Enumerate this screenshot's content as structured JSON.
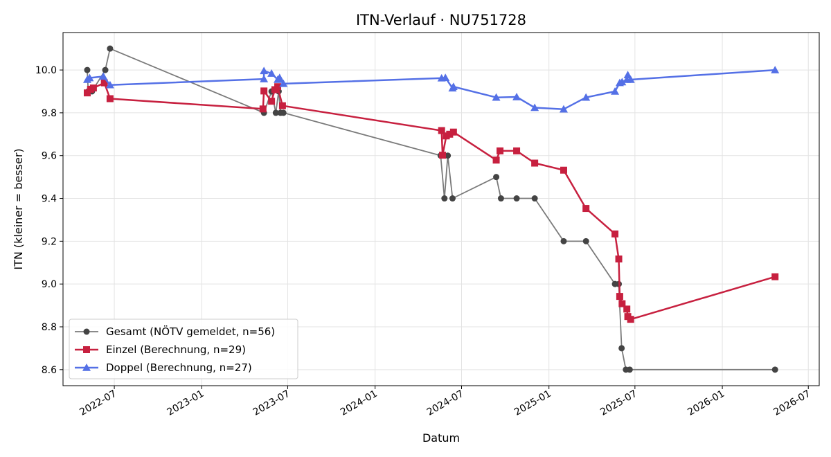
{
  "chart_data": {
    "type": "line",
    "title": "ITN-Verlauf · NU751728",
    "xlabel": "Datum",
    "ylabel": "ITN  (kleiner = besser)",
    "x_ticks": [
      "2022-07",
      "2023-01",
      "2023-07",
      "2024-01",
      "2024-07",
      "2025-01",
      "2025-07",
      "2026-01",
      "2026-07"
    ],
    "y_ticks": [
      "8.6",
      "8.8",
      "9.0",
      "9.2",
      "9.4",
      "9.6",
      "9.8",
      "10.0"
    ],
    "xlim": [
      "2022-03-15",
      "2026-07-24"
    ],
    "ylim": [
      8.525,
      10.175
    ],
    "grid": true,
    "legend_position": "lower-left",
    "series": [
      {
        "name": "Gesamt (NÖTV gemeldet, n=56)",
        "color": "#444444",
        "line_color": "#7a7a7a",
        "marker": "circle",
        "points": [
          [
            "2022-05-05",
            10.0
          ],
          [
            "2022-05-07",
            9.9
          ],
          [
            "2022-05-15",
            9.9
          ],
          [
            "2022-06-12",
            10.0
          ],
          [
            "2022-06-22",
            10.1
          ],
          [
            "2023-05-12",
            9.8
          ],
          [
            "2023-05-28",
            9.9
          ],
          [
            "2023-06-06",
            9.8
          ],
          [
            "2023-06-12",
            9.9
          ],
          [
            "2023-06-16",
            9.8
          ],
          [
            "2023-06-22",
            9.8
          ],
          [
            "2024-05-18",
            9.6
          ],
          [
            "2024-05-26",
            9.4
          ],
          [
            "2024-06-02",
            9.6
          ],
          [
            "2024-06-12",
            9.4
          ],
          [
            "2024-09-12",
            9.5
          ],
          [
            "2024-09-22",
            9.4
          ],
          [
            "2024-10-25",
            9.4
          ],
          [
            "2024-12-02",
            9.4
          ],
          [
            "2025-02-01",
            9.2
          ],
          [
            "2025-03-20",
            9.2
          ],
          [
            "2025-05-20",
            9.0
          ],
          [
            "2025-05-28",
            9.0
          ],
          [
            "2025-06-03",
            8.7
          ],
          [
            "2025-06-12",
            8.6
          ],
          [
            "2025-06-20",
            8.6
          ],
          [
            "2026-04-22",
            8.6
          ]
        ]
      },
      {
        "name": "Einzel (Berechnung, n=29)",
        "color": "#c7203f",
        "marker": "square",
        "points": [
          [
            "2022-05-05",
            9.893
          ],
          [
            "2022-05-12",
            9.91
          ],
          [
            "2022-05-18",
            9.916
          ],
          [
            "2022-06-10",
            9.94
          ],
          [
            "2022-06-22",
            9.866
          ],
          [
            "2023-05-10",
            9.818
          ],
          [
            "2023-05-12",
            9.902
          ],
          [
            "2023-05-28",
            9.854
          ],
          [
            "2023-06-04",
            9.908
          ],
          [
            "2023-06-10",
            9.922
          ],
          [
            "2023-06-20",
            9.833
          ],
          [
            "2024-05-20",
            9.717
          ],
          [
            "2024-05-22",
            9.602
          ],
          [
            "2024-05-30",
            9.692
          ],
          [
            "2024-06-06",
            9.7
          ],
          [
            "2024-06-14",
            9.71
          ],
          [
            "2024-09-12",
            9.579
          ],
          [
            "2024-09-20",
            9.622
          ],
          [
            "2024-10-25",
            9.622
          ],
          [
            "2024-12-02",
            9.565
          ],
          [
            "2025-02-01",
            9.532
          ],
          [
            "2025-03-20",
            9.353
          ],
          [
            "2025-05-20",
            9.234
          ],
          [
            "2025-05-28",
            9.117
          ],
          [
            "2025-05-30",
            8.942
          ],
          [
            "2025-06-04",
            8.908
          ],
          [
            "2025-06-14",
            8.883
          ],
          [
            "2025-06-16",
            8.848
          ],
          [
            "2025-06-22",
            8.835
          ],
          [
            "2026-04-22",
            9.034
          ]
        ]
      },
      {
        "name": "Doppel (Berechnung, n=27)",
        "color": "#5470e6",
        "marker": "triangle",
        "points": [
          [
            "2022-05-05",
            9.955
          ],
          [
            "2022-05-10",
            9.963
          ],
          [
            "2022-06-08",
            9.97
          ],
          [
            "2022-06-22",
            9.93
          ],
          [
            "2023-05-12",
            9.958
          ],
          [
            "2023-05-12",
            9.996
          ],
          [
            "2023-05-28",
            9.984
          ],
          [
            "2023-06-10",
            9.955
          ],
          [
            "2023-06-14",
            9.964
          ],
          [
            "2023-06-22",
            9.936
          ],
          [
            "2024-05-20",
            9.962
          ],
          [
            "2024-05-28",
            9.964
          ],
          [
            "2024-06-12",
            9.915
          ],
          [
            "2024-06-14",
            9.922
          ],
          [
            "2024-09-12",
            9.872
          ],
          [
            "2024-10-25",
            9.874
          ],
          [
            "2024-12-02",
            9.824
          ],
          [
            "2025-02-01",
            9.817
          ],
          [
            "2025-03-20",
            9.872
          ],
          [
            "2025-05-20",
            9.9
          ],
          [
            "2025-05-30",
            9.94
          ],
          [
            "2025-06-04",
            9.944
          ],
          [
            "2025-06-14",
            9.955
          ],
          [
            "2025-06-16",
            9.977
          ],
          [
            "2025-06-22",
            9.955
          ],
          [
            "2026-04-22",
            10.0
          ]
        ]
      }
    ]
  }
}
